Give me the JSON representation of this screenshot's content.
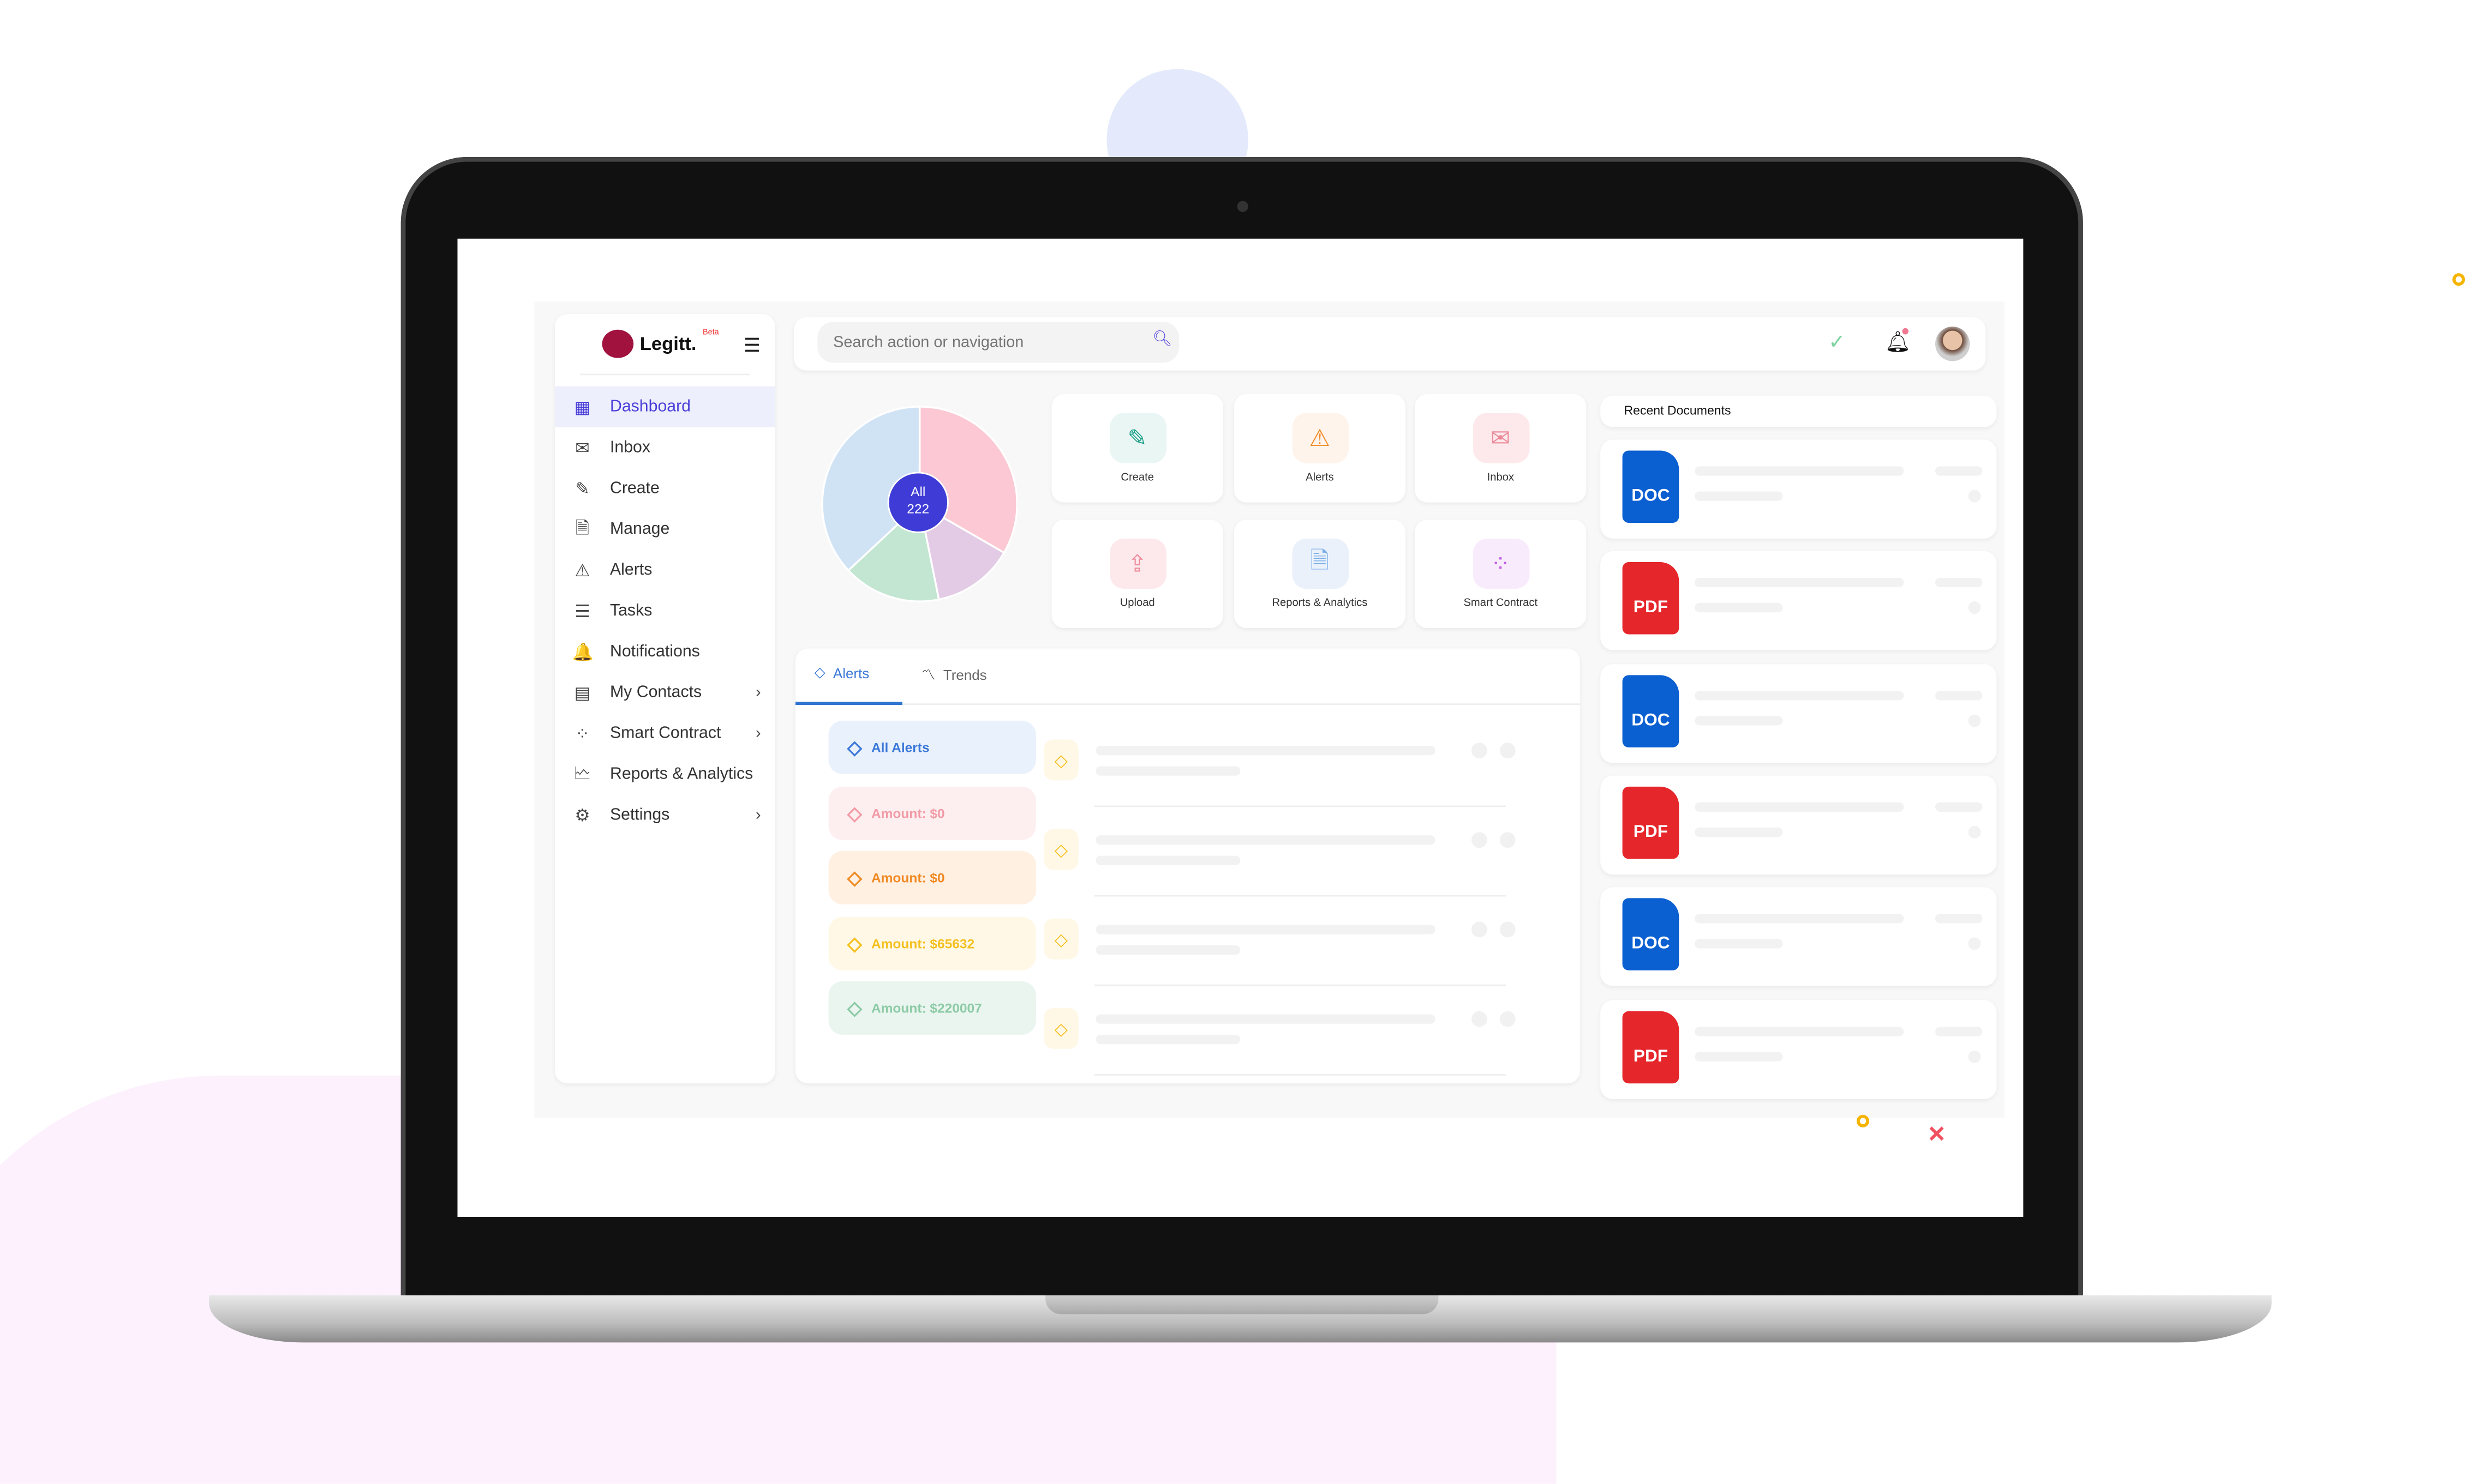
{
  "app": {
    "name": "Legitt.",
    "badge": "Beta"
  },
  "sidebar": {
    "items": [
      {
        "label": "Dashboard",
        "icon": "dashboard-icon",
        "glyph": "▦",
        "active": true
      },
      {
        "label": "Inbox",
        "icon": "inbox-icon",
        "glyph": "✉"
      },
      {
        "label": "Create",
        "icon": "create-icon",
        "glyph": "✎"
      },
      {
        "label": "Manage",
        "icon": "manage-icon",
        "glyph": "🗎"
      },
      {
        "label": "Alerts",
        "icon": "alerts-icon",
        "glyph": "⚠"
      },
      {
        "label": "Tasks",
        "icon": "tasks-icon",
        "glyph": "☰"
      },
      {
        "label": "Notifications",
        "icon": "bell-icon",
        "glyph": "🔔"
      },
      {
        "label": "My Contacts",
        "icon": "contacts-icon",
        "glyph": "▤",
        "submenu": true
      },
      {
        "label": "Smart Contract",
        "icon": "smart-contract-icon",
        "glyph": "⁘",
        "submenu": true
      },
      {
        "label": "Reports & Analytics",
        "icon": "reports-icon",
        "glyph": "🗠"
      },
      {
        "label": "Settings",
        "icon": "gear-icon",
        "glyph": "⚙",
        "submenu": true
      }
    ]
  },
  "header": {
    "search_placeholder": "Search action or navigation"
  },
  "chart_data": {
    "type": "pie",
    "center_label": "All",
    "total": 222,
    "slices": [
      {
        "value": 74,
        "color": "#fcc8d3"
      },
      {
        "value": 30,
        "color": "#e3cbe6"
      },
      {
        "value": 36,
        "color": "#c2e6d2"
      },
      {
        "value": 82,
        "color": "#d0e3f5"
      }
    ],
    "center_color": "#3f3bd6"
  },
  "quick_actions": [
    {
      "label": "Create",
      "glyph": "✎",
      "color": "#19a088",
      "bg": "#eaf6f4"
    },
    {
      "label": "Alerts",
      "glyph": "⚠",
      "color": "#f08a24",
      "bg": "#fff4ec"
    },
    {
      "label": "Inbox",
      "glyph": "✉",
      "color": "#ec8a9a",
      "bg": "#fde9ec"
    },
    {
      "label": "Upload",
      "glyph": "⇪",
      "color": "#ec8a9a",
      "bg": "#fde9ec"
    },
    {
      "label": "Reports & Analytics",
      "glyph": "🗎",
      "color": "#7aaee8",
      "bg": "#eaf1fb"
    },
    {
      "label": "Smart Contract",
      "glyph": "⁘",
      "color": "#c05ee0",
      "bg": "#f8ecfc"
    }
  ],
  "recent_documents": {
    "title": "Recent Documents",
    "items": [
      {
        "type": "DOC",
        "color": "#0a5fd1"
      },
      {
        "type": "PDF",
        "color": "#e5262b"
      },
      {
        "type": "DOC",
        "color": "#0a5fd1"
      },
      {
        "type": "PDF",
        "color": "#e5262b"
      },
      {
        "type": "DOC",
        "color": "#0a5fd1"
      },
      {
        "type": "PDF",
        "color": "#e5262b"
      }
    ]
  },
  "alerts_panel": {
    "tabs": [
      {
        "label": "Alerts",
        "active": true
      },
      {
        "label": "Trends"
      }
    ],
    "chips": [
      {
        "label": "All Alerts",
        "color": "#3a78d8",
        "bg": "#e9f1fc"
      },
      {
        "label": "Amount: $0",
        "color": "#f29aa6",
        "bg": "#fdeff0"
      },
      {
        "label": "Amount: $0",
        "color": "#f08a24",
        "bg": "#fff0e2"
      },
      {
        "label": "Amount: $65632",
        "color": "#f4c020",
        "bg": "#fff8e6"
      },
      {
        "label": "Amount: $220007",
        "color": "#8ccaa6",
        "bg": "#e9f5ee"
      }
    ]
  }
}
